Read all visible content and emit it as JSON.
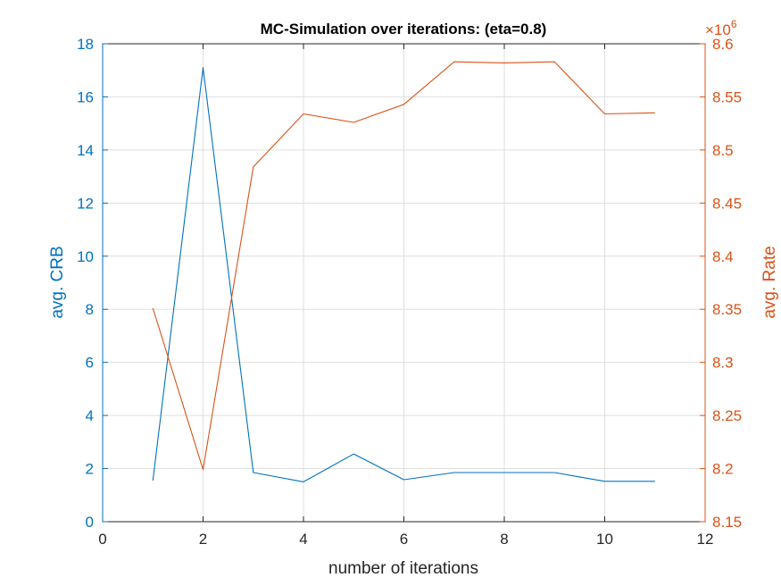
{
  "chart_data": {
    "type": "line",
    "title": "MC-Simulation over iterations: (eta=0.8)",
    "xlabel": "number of iterations",
    "ylabel_left": "avg. CRB",
    "ylabel_right": "avg. Rate",
    "right_exponent_base": "×10",
    "right_exponent_power": "6",
    "xlim": [
      0,
      12
    ],
    "ylim_left": [
      0,
      18
    ],
    "ylim_right": [
      8.15,
      8.6
    ],
    "x_ticks": [
      0,
      2,
      4,
      6,
      8,
      10,
      12
    ],
    "y_left_ticks": [
      0,
      2,
      4,
      6,
      8,
      10,
      12,
      14,
      16,
      18
    ],
    "y_right_ticks": [
      "8.15",
      "8.2",
      "8.25",
      "8.3",
      "8.35",
      "8.4",
      "8.45",
      "8.5",
      "8.55",
      "8.6"
    ],
    "grid": true,
    "series": [
      {
        "axis": "left",
        "color": "#0072BD",
        "x": [
          1,
          2,
          3,
          4,
          5,
          6,
          7,
          8,
          9,
          10,
          11
        ],
        "values": [
          1.55,
          17.1,
          1.85,
          1.5,
          2.55,
          1.58,
          1.85,
          1.85,
          1.85,
          1.52,
          1.52
        ]
      },
      {
        "axis": "right",
        "color": "#D95319",
        "x": [
          1,
          2,
          3,
          4,
          5,
          6,
          7,
          8,
          9,
          10,
          11
        ],
        "values": [
          8.351,
          8.199,
          8.484,
          8.534,
          8.526,
          8.543,
          8.583,
          8.582,
          8.583,
          8.534,
          8.535
        ]
      }
    ]
  }
}
